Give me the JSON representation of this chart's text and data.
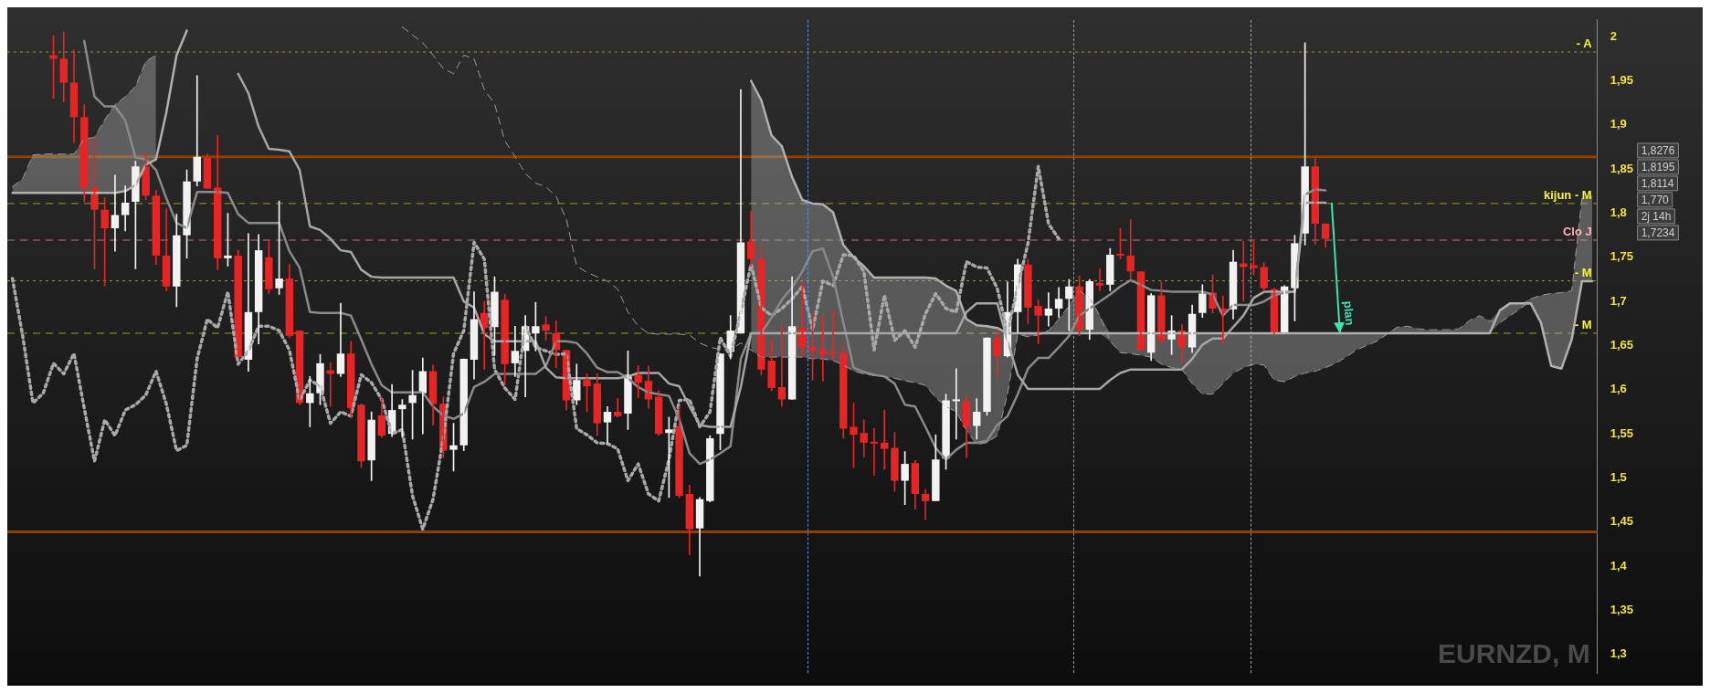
{
  "chart_data": {
    "type": "candlestick",
    "title": "EURNZD, M",
    "categories": [
      null,
      null,
      null,
      null,
      null,
      null,
      null,
      null,
      null,
      null,
      null,
      null,
      null,
      null,
      null,
      null,
      null,
      null,
      null,
      null,
      null,
      null,
      null,
      null,
      null,
      null,
      null,
      null,
      null,
      null,
      null,
      null,
      null,
      null,
      null,
      null,
      null,
      null,
      null,
      null,
      null,
      null,
      null,
      null,
      null,
      null,
      null,
      null,
      null,
      null,
      null,
      null,
      null,
      null,
      null,
      null,
      null,
      null,
      null,
      null,
      null,
      null,
      null,
      null,
      null,
      null,
      null,
      null,
      null,
      null,
      null,
      null,
      null,
      null,
      null,
      null,
      null,
      null,
      null,
      null,
      null,
      null,
      null,
      null,
      null,
      null,
      null,
      null,
      null,
      null,
      null,
      null,
      null,
      null,
      null,
      null,
      null,
      null,
      null,
      null,
      null,
      null,
      null,
      null,
      null,
      null,
      null,
      null,
      null,
      null,
      null,
      null,
      null,
      null,
      null,
      null,
      null,
      null,
      null,
      null,
      null,
      null,
      null,
      null,
      null,
      null,
      null,
      null,
      null,
      null,
      null,
      null,
      null,
      null,
      null,
      null,
      null,
      null,
      null,
      null,
      null,
      null,
      null,
      null,
      null,
      null,
      null,
      null,
      null,
      null,
      null,
      null,
      null,
      null,
      null
    ],
    "ohlc": [
      null,
      null,
      null,
      null,
      [
        1.979,
        2.001,
        1.93,
        1.975
      ],
      [
        1.975,
        2.005,
        1.926,
        1.948
      ],
      [
        1.948,
        1.985,
        1.88,
        1.909
      ],
      [
        1.909,
        1.923,
        1.813,
        1.829
      ],
      [
        1.829,
        1.886,
        1.737,
        1.804
      ],
      [
        1.804,
        1.818,
        1.718,
        1.783
      ],
      [
        1.783,
        1.843,
        1.757,
        1.798
      ],
      [
        1.798,
        1.831,
        1.78,
        1.812
      ],
      [
        1.813,
        1.859,
        1.737,
        1.853
      ],
      [
        1.853,
        1.869,
        1.815,
        1.82
      ],
      [
        1.82,
        1.826,
        1.742,
        1.752
      ],
      [
        1.752,
        1.805,
        1.712,
        1.717
      ],
      [
        1.717,
        1.799,
        1.694,
        1.775
      ],
      [
        1.775,
        1.849,
        1.749,
        1.836
      ],
      [
        1.836,
        1.956,
        1.831,
        1.864
      ],
      [
        1.863,
        1.867,
        1.828,
        1.828
      ],
      [
        1.829,
        1.888,
        1.736,
        1.749
      ],
      [
        1.749,
        1.8,
        1.74,
        1.752
      ],
      [
        1.752,
        1.758,
        1.637,
        1.637
      ],
      [
        1.634,
        1.777,
        1.621,
        1.688
      ],
      [
        1.688,
        1.776,
        1.652,
        1.758
      ],
      [
        1.75,
        1.769,
        1.709,
        1.714
      ],
      [
        1.715,
        1.814,
        1.708,
        1.726
      ],
      [
        1.726,
        1.742,
        1.659,
        1.661
      ],
      [
        1.667,
        1.667,
        1.583,
        1.585
      ],
      [
        1.585,
        1.615,
        1.558,
        1.596
      ],
      [
        1.596,
        1.64,
        1.583,
        1.63
      ],
      [
        1.622,
        1.631,
        1.581,
        1.618
      ],
      [
        1.618,
        1.698,
        1.615,
        1.641
      ],
      [
        1.641,
        1.655,
        1.569,
        1.579
      ],
      [
        1.583,
        1.584,
        1.512,
        1.519
      ],
      [
        1.52,
        1.575,
        1.497,
        1.566
      ],
      [
        1.571,
        1.591,
        1.546,
        1.548
      ],
      [
        1.55,
        1.606,
        1.547,
        1.577
      ],
      [
        1.578,
        1.589,
        1.546,
        1.583
      ],
      [
        1.585,
        1.622,
        1.544,
        1.594
      ],
      [
        1.596,
        1.636,
        1.55,
        1.621
      ],
      [
        1.621,
        1.628,
        1.56,
        1.584
      ],
      [
        1.584,
        1.592,
        1.523,
        1.531
      ],
      [
        1.532,
        1.562,
        1.508,
        1.537
      ],
      [
        1.537,
        1.635,
        1.531,
        1.635
      ],
      [
        1.634,
        1.711,
        1.612,
        1.68
      ],
      [
        1.687,
        1.7,
        1.623,
        1.67
      ],
      [
        1.671,
        1.728,
        1.639,
        1.711
      ],
      [
        1.702,
        1.708,
        1.606,
        1.629
      ],
      [
        1.63,
        1.672,
        1.615,
        1.644
      ],
      [
        1.644,
        1.684,
        1.592,
        1.672
      ],
      [
        1.664,
        1.699,
        1.644,
        1.672
      ],
      [
        1.674,
        1.683,
        1.656,
        1.667
      ],
      [
        1.664,
        1.678,
        1.625,
        1.645
      ],
      [
        1.645,
        1.645,
        1.577,
        1.588
      ],
      [
        1.588,
        1.629,
        1.583,
        1.611
      ],
      [
        1.611,
        1.618,
        1.575,
        1.604
      ],
      [
        1.607,
        1.618,
        1.548,
        1.562
      ],
      [
        1.563,
        1.581,
        1.54,
        1.575
      ],
      [
        1.575,
        1.59,
        1.569,
        1.57
      ],
      [
        1.573,
        1.644,
        1.555,
        1.617
      ],
      [
        1.617,
        1.627,
        1.591,
        1.608
      ],
      [
        1.61,
        1.627,
        1.579,
        1.589
      ],
      [
        1.592,
        1.599,
        1.548,
        1.55
      ],
      [
        1.551,
        1.569,
        1.478,
        1.555
      ],
      [
        1.559,
        1.581,
        1.478,
        1.48
      ],
      [
        1.482,
        1.492,
        1.413,
        1.442
      ],
      [
        1.443,
        1.478,
        1.389,
        1.476
      ],
      [
        1.474,
        1.548,
        1.473,
        1.545
      ],
      [
        1.55,
        1.641,
        1.532,
        1.641
      ],
      [
        1.643,
        1.684,
        1.635,
        1.667
      ],
      [
        1.664,
        1.94,
        1.664,
        1.767
      ],
      [
        1.768,
        1.802,
        1.74,
        1.748
      ],
      [
        1.748,
        1.764,
        1.617,
        1.623
      ],
      [
        1.633,
        1.657,
        1.599,
        1.602
      ],
      [
        1.603,
        1.674,
        1.581,
        1.589
      ],
      [
        1.589,
        1.728,
        1.589,
        1.672
      ],
      [
        1.67,
        1.722,
        1.637,
        1.648
      ],
      [
        1.649,
        1.688,
        1.611,
        1.644
      ],
      [
        1.645,
        1.684,
        1.61,
        1.64
      ],
      [
        1.643,
        1.69,
        1.633,
        1.641
      ],
      [
        1.642,
        1.651,
        1.545,
        1.556
      ],
      [
        1.558,
        1.585,
        1.512,
        1.549
      ],
      [
        1.551,
        1.566,
        1.524,
        1.54
      ],
      [
        1.541,
        1.556,
        1.503,
        1.539
      ],
      [
        1.54,
        1.577,
        1.51,
        1.533
      ],
      [
        1.534,
        1.552,
        1.485,
        1.497
      ],
      [
        1.497,
        1.53,
        1.47,
        1.516
      ],
      [
        1.517,
        1.52,
        1.465,
        1.482
      ],
      [
        1.482,
        1.487,
        1.453,
        1.474
      ],
      [
        1.474,
        1.549,
        1.474,
        1.521
      ],
      [
        1.522,
        1.595,
        1.51,
        1.588
      ],
      [
        1.587,
        1.624,
        1.544,
        1.589
      ],
      [
        1.587,
        1.593,
        1.523,
        1.558
      ],
      [
        1.559,
        1.59,
        1.544,
        1.575
      ],
      [
        1.575,
        1.659,
        1.571,
        1.659
      ],
      [
        1.659,
        1.668,
        1.613,
        1.638
      ],
      [
        1.638,
        1.722,
        1.637,
        1.688
      ],
      [
        1.688,
        1.748,
        1.665,
        1.742
      ],
      [
        1.742,
        1.748,
        1.675,
        1.693
      ],
      [
        1.695,
        1.702,
        1.652,
        1.684
      ],
      [
        1.684,
        1.71,
        1.672,
        1.692
      ],
      [
        1.692,
        1.716,
        1.682,
        1.703
      ],
      [
        1.703,
        1.725,
        1.667,
        1.717
      ],
      [
        1.717,
        1.729,
        1.661,
        1.668
      ],
      [
        1.668,
        1.725,
        1.657,
        1.723
      ],
      [
        1.721,
        1.737,
        1.712,
        1.718
      ],
      [
        1.719,
        1.76,
        1.712,
        1.753
      ],
      [
        1.754,
        1.783,
        1.748,
        1.752
      ],
      [
        1.752,
        1.793,
        1.726,
        1.734
      ],
      [
        1.734,
        1.734,
        1.645,
        1.645
      ],
      [
        1.642,
        1.709,
        1.633,
        1.707
      ],
      [
        1.707,
        1.722,
        1.652,
        1.656
      ],
      [
        1.657,
        1.684,
        1.64,
        1.667
      ],
      [
        1.667,
        1.674,
        1.63,
        1.648
      ],
      [
        1.648,
        1.696,
        1.642,
        1.686
      ],
      [
        1.687,
        1.719,
        1.682,
        1.709
      ],
      [
        1.71,
        1.73,
        1.687,
        1.692
      ],
      [
        1.692,
        1.706,
        1.652,
        1.688
      ],
      [
        1.691,
        1.758,
        1.68,
        1.745
      ],
      [
        1.743,
        1.768,
        1.7,
        1.739
      ],
      [
        1.741,
        1.768,
        1.73,
        1.738
      ],
      [
        1.739,
        1.744,
        1.712,
        1.715
      ],
      [
        1.714,
        1.715,
        1.663,
        1.665
      ],
      [
        1.665,
        1.718,
        1.665,
        1.717
      ],
      [
        1.715,
        1.775,
        1.678,
        1.766
      ],
      [
        1.777,
        1.993,
        1.764,
        1.853
      ],
      [
        1.853,
        1.862,
        1.765,
        1.788
      ],
      [
        1.788,
        1.788,
        1.761,
        1.771
      ],
      null,
      null,
      null,
      null,
      null,
      null,
      null,
      null,
      null,
      null,
      null,
      null,
      null,
      null,
      null,
      null,
      null,
      null,
      null,
      null,
      null,
      null,
      null,
      null,
      null,
      null
    ],
    "series": [
      {
        "type": "line",
        "line_style": "dashed",
        "color": "#9a9a9a",
        "values": [
          1.83,
          1.839,
          1.866,
          1.867,
          1.867,
          1.867,
          1.867,
          1.884,
          1.886,
          1.906,
          1.923,
          1.932,
          1.944,
          1.972,
          1.979,
          null,
          null,
          null,
          null,
          null,
          null,
          null,
          null,
          null,
          null,
          null,
          null,
          null,
          null,
          null,
          null,
          null,
          null,
          null,
          null,
          null,
          null,
          null,
          2.011,
          2.002,
          1.993,
          1.979,
          1.964,
          1.958,
          1.979,
          1.975,
          1.94,
          1.924,
          1.882,
          1.864,
          1.845,
          1.834,
          1.83,
          1.819,
          1.793,
          1.74,
          1.733,
          1.728,
          1.723,
          1.714,
          1.688,
          1.672,
          1.664,
          1.663,
          1.663,
          1.663,
          1.662,
          1.653,
          1.648,
          1.646,
          1.645,
          1.653,
          1.645,
          1.637,
          1.637,
          1.637,
          1.637,
          1.637,
          1.635,
          1.635,
          1.633,
          1.628,
          1.621,
          1.618,
          1.616,
          1.615,
          1.613,
          1.61,
          1.608,
          1.605,
          1.591,
          1.581,
          1.575,
          1.554,
          1.538,
          1.54,
          1.548,
          1.595,
          1.663,
          1.66,
          1.662,
          1.667,
          1.68,
          1.695,
          1.712,
          1.704,
          1.684,
          1.655,
          1.642,
          1.641,
          1.639,
          1.637,
          1.629,
          1.625,
          1.623,
          1.607,
          1.595,
          1.595,
          1.607,
          1.619,
          1.625,
          1.629,
          1.628,
          1.611,
          1.609,
          1.615,
          1.619,
          1.621,
          1.625,
          1.63,
          1.637,
          1.645,
          1.65,
          1.655,
          1.663,
          1.671,
          1.672,
          1.669,
          1.668,
          1.668,
          1.668,
          1.669,
          1.678,
          1.684,
          1.678,
          1.676,
          1.684,
          1.692,
          1.703,
          1.707,
          1.709,
          1.71,
          1.712,
          1.817,
          1.819
        ]
      },
      {
        "type": "line",
        "line_style": "solid",
        "color": "#b0b0b0",
        "lower": [
          1.823,
          1.823,
          1.823,
          1.823,
          1.823,
          1.823,
          1.823,
          1.823,
          1.823,
          1.823,
          1.823,
          1.825,
          1.832,
          1.855,
          1.861,
          null,
          null,
          null,
          null,
          null,
          null,
          null,
          null,
          null,
          null,
          null,
          null,
          null,
          null,
          null,
          null,
          null,
          null,
          null,
          null,
          null,
          null,
          null,
          null,
          null,
          null,
          null,
          null,
          null,
          null,
          null,
          null,
          null,
          null,
          null,
          null,
          null,
          null,
          null,
          null,
          null,
          null,
          null,
          null,
          null,
          null,
          null,
          null,
          null,
          null,
          null,
          null,
          null,
          null,
          null,
          null,
          null,
          1.645,
          1.637,
          1.637,
          1.637,
          1.637,
          1.637,
          1.635,
          1.635,
          1.633,
          1.628,
          1.621,
          1.618,
          1.616,
          1.615,
          1.613,
          1.61,
          1.608,
          1.605,
          1.591,
          1.581,
          1.575,
          1.554,
          1.538,
          1.54,
          1.548,
          1.595,
          1.663,
          1.66,
          1.662,
          1.664,
          1.664,
          1.664,
          1.664,
          1.664,
          1.664,
          1.655,
          1.642,
          1.641,
          1.639,
          1.637,
          1.629,
          1.625,
          1.623,
          1.607,
          1.595,
          1.595,
          1.607,
          1.619,
          1.625,
          1.629,
          1.628,
          1.611,
          1.609,
          1.615,
          1.619,
          1.621,
          1.625,
          1.63,
          1.637,
          1.645,
          1.65,
          1.655,
          1.663,
          1.664,
          1.664,
          1.664,
          1.664,
          1.664,
          1.664,
          1.664,
          1.664,
          1.664,
          1.664,
          1.676,
          1.684,
          1.692,
          1.698,
          1.676,
          1.627,
          1.624,
          1.657,
          1.723,
          1.723
        ],
        "upper": [
          1.83,
          1.839,
          1.866,
          1.867,
          1.867,
          1.867,
          1.867,
          1.884,
          1.886,
          1.906,
          1.923,
          1.932,
          1.944,
          1.972,
          1.979,
          null,
          null,
          null,
          null,
          null,
          null,
          null,
          null,
          null,
          null,
          null,
          null,
          null,
          null,
          null,
          null,
          null,
          null,
          null,
          null,
          null,
          null,
          null,
          null,
          null,
          null,
          null,
          null,
          null,
          null,
          null,
          null,
          null,
          null,
          null,
          null,
          null,
          null,
          null,
          null,
          null,
          null,
          null,
          null,
          null,
          null,
          null,
          null,
          null,
          null,
          null,
          null,
          null,
          null,
          null,
          null,
          null,
          1.95,
          1.928,
          1.888,
          1.876,
          1.841,
          1.815,
          1.811,
          1.81,
          1.801,
          1.764,
          1.75,
          1.74,
          1.727,
          1.727,
          1.727,
          1.727,
          1.727,
          1.727,
          1.726,
          1.718,
          1.712,
          1.68,
          1.673,
          1.672,
          1.67,
          1.664,
          1.664,
          1.664,
          1.664,
          1.667,
          1.68,
          1.695,
          1.712,
          1.704,
          1.684,
          1.664,
          1.664,
          1.664,
          1.664,
          1.664,
          1.664,
          1.664,
          1.664,
          1.664,
          1.664,
          1.664,
          1.664,
          1.664,
          1.664,
          1.664,
          1.664,
          1.664,
          1.664,
          1.664,
          1.664,
          1.664,
          1.664,
          1.664,
          1.664,
          1.664,
          1.664,
          1.664,
          1.664,
          1.671,
          1.672,
          1.669,
          1.668,
          1.668,
          1.668,
          1.669,
          1.678,
          1.684,
          1.678,
          1.69,
          1.698,
          1.698,
          1.703,
          1.707,
          1.709,
          1.71,
          1.712,
          1.817,
          1.819
        ],
        "values": [
          1.823,
          1.823,
          1.823,
          1.823,
          1.823,
          1.823,
          1.823,
          1.823,
          1.823,
          1.823,
          1.823,
          1.825,
          1.832,
          1.855,
          1.861,
          1.914,
          1.979,
          2.007,
          null,
          null,
          null,
          null,
          null,
          null,
          null,
          null,
          null,
          null,
          null,
          null,
          null,
          null,
          null,
          null,
          null,
          null,
          null,
          null,
          null,
          null,
          null,
          null,
          null,
          null,
          null,
          null,
          null,
          null,
          null,
          null,
          null,
          null,
          null,
          null,
          null,
          null,
          null,
          null,
          null,
          null,
          null,
          null,
          null,
          null,
          null,
          null,
          null,
          null,
          null,
          null,
          null,
          null,
          1.95,
          1.928,
          1.888,
          1.876,
          1.841,
          1.815,
          1.811,
          1.81,
          1.801,
          1.764,
          1.75,
          1.74,
          1.727,
          1.727,
          1.727,
          1.727,
          1.727,
          1.727,
          1.726,
          1.718,
          1.712,
          1.68,
          1.673,
          1.672,
          1.67,
          1.664,
          1.664,
          1.664,
          1.664,
          1.664,
          1.664,
          1.664,
          1.664,
          1.664,
          1.664,
          1.664,
          1.664,
          1.664,
          1.664,
          1.664,
          1.664,
          1.664,
          1.664,
          1.664,
          1.664,
          1.664,
          1.664,
          1.664,
          1.664,
          1.664,
          1.664,
          1.664,
          1.664,
          1.664,
          1.664,
          1.664,
          1.664,
          1.664,
          1.664,
          1.664,
          1.664,
          1.664,
          1.664,
          1.664,
          1.664,
          1.664,
          1.664,
          1.664,
          1.664,
          1.664,
          1.664,
          1.664,
          1.664,
          1.69,
          1.698,
          1.698,
          1.698,
          1.676,
          1.627,
          1.624,
          1.657,
          1.723,
          1.723
        ]
      },
      {
        "type": "line",
        "line_style": "solid",
        "color": "#a6a6a6",
        "values": [
          null,
          null,
          null,
          null,
          null,
          null,
          null,
          null,
          null,
          null,
          null,
          null,
          null,
          null,
          null,
          null,
          null,
          null,
          null,
          null,
          null,
          null,
          1.958,
          1.936,
          1.898,
          1.873,
          1.872,
          1.87,
          1.849,
          1.785,
          1.781,
          1.771,
          1.758,
          1.756,
          1.736,
          1.728,
          1.727,
          1.727,
          1.727,
          1.727,
          1.727,
          1.727,
          1.727,
          1.727,
          1.7,
          1.693,
          1.663,
          1.655,
          1.655,
          1.655,
          1.655,
          1.655,
          1.625,
          1.614,
          1.613,
          1.613,
          1.613,
          1.613,
          1.613,
          1.613,
          1.615,
          1.619,
          1.619,
          1.619,
          1.607,
          1.604,
          1.581,
          1.56,
          1.558,
          1.558,
          1.558,
          1.603,
          1.664,
          1.664,
          1.664,
          1.664,
          1.664,
          1.664,
          1.664,
          1.664,
          1.664,
          1.664,
          1.664,
          1.664,
          1.664,
          1.664,
          1.664,
          1.664,
          1.664,
          1.664,
          1.664,
          1.664,
          1.664,
          1.688,
          1.698,
          1.698,
          1.698,
          1.655,
          1.617,
          1.601,
          1.601,
          1.601,
          1.601,
          1.601,
          1.601,
          1.601,
          1.601,
          1.611,
          1.619,
          1.623,
          1.623,
          1.623,
          1.623,
          1.623,
          1.623,
          1.635,
          1.651,
          1.658,
          1.658,
          1.671,
          1.684,
          1.704,
          1.711,
          1.711,
          1.711,
          1.711,
          1.812,
          1.812,
          1.812,
          null,
          null,
          null,
          null,
          null,
          null,
          null,
          null,
          null,
          null,
          null,
          null,
          null,
          null,
          null,
          null,
          null,
          null,
          null,
          null,
          null,
          null,
          null,
          null,
          null,
          null
        ]
      },
      {
        "type": "line",
        "line_style": "solid",
        "color": "#8a8a8a",
        "values": [
          null,
          null,
          null,
          null,
          null,
          null,
          null,
          1.995,
          1.932,
          1.921,
          1.921,
          1.905,
          1.863,
          1.861,
          1.849,
          1.817,
          1.789,
          1.783,
          1.824,
          1.824,
          1.824,
          1.823,
          1.799,
          1.789,
          1.789,
          1.789,
          1.789,
          1.757,
          1.738,
          1.688,
          1.687,
          1.687,
          1.687,
          1.684,
          1.657,
          1.629,
          1.605,
          1.597,
          1.597,
          1.597,
          1.597,
          1.581,
          1.571,
          1.567,
          1.573,
          1.603,
          1.609,
          1.618,
          1.618,
          1.618,
          1.618,
          1.618,
          1.627,
          1.655,
          1.655,
          1.653,
          1.641,
          1.625,
          1.62,
          1.62,
          1.613,
          1.603,
          1.597,
          1.595,
          1.593,
          1.567,
          1.528,
          1.516,
          1.521,
          1.528,
          1.536,
          1.635,
          1.664,
          1.664,
          1.682,
          1.702,
          1.716,
          1.734,
          1.757,
          1.76,
          1.728,
          1.676,
          1.625,
          1.62,
          1.617,
          1.615,
          1.607,
          1.583,
          1.581,
          1.558,
          1.534,
          1.521,
          1.532,
          1.54,
          1.54,
          1.542,
          1.56,
          1.57,
          1.595,
          1.624,
          1.636,
          1.636,
          1.648,
          1.661,
          1.684,
          1.692,
          1.7,
          1.708,
          1.717,
          1.724,
          1.719,
          1.713,
          1.712,
          1.711,
          1.711,
          1.711,
          1.711,
          1.708,
          1.684,
          1.696,
          1.696,
          1.696,
          1.7,
          1.707,
          1.71,
          1.711,
          1.821,
          1.827,
          1.826,
          null,
          null,
          null,
          null,
          null,
          null,
          null,
          null,
          null,
          null,
          null,
          null,
          null,
          null,
          null,
          null,
          null,
          null,
          null,
          null,
          null,
          null,
          null,
          null,
          null,
          null
        ]
      },
      {
        "type": "line",
        "line_style": "dotted",
        "color": "#a8a8a8",
        "values": [
          1.726,
          1.661,
          1.585,
          1.596,
          1.63,
          1.618,
          1.641,
          1.579,
          1.519,
          1.566,
          1.548,
          1.577,
          1.583,
          1.594,
          1.621,
          1.584,
          1.531,
          1.537,
          1.635,
          1.68,
          1.67,
          1.711,
          1.629,
          1.644,
          1.672,
          1.672,
          1.667,
          1.645,
          1.588,
          1.611,
          1.604,
          1.562,
          1.575,
          1.57,
          1.617,
          1.608,
          1.589,
          1.55,
          1.555,
          1.48,
          1.442,
          1.476,
          1.545,
          1.641,
          1.667,
          1.767,
          1.748,
          1.623,
          1.602,
          1.589,
          1.672,
          1.648,
          1.644,
          1.64,
          1.641,
          1.556,
          1.549,
          1.54,
          1.539,
          1.533,
          1.497,
          1.516,
          1.482,
          1.474,
          1.521,
          1.588,
          1.589,
          1.558,
          1.575,
          1.659,
          1.638,
          1.688,
          1.742,
          1.693,
          1.684,
          1.692,
          1.703,
          1.717,
          1.668,
          1.723,
          1.718,
          1.753,
          1.752,
          1.734,
          1.645,
          1.707,
          1.656,
          1.667,
          1.648,
          1.686,
          1.709,
          1.692,
          1.688,
          1.745,
          1.739,
          1.738,
          1.715,
          1.665,
          1.717,
          1.766,
          1.853,
          1.788,
          1.771,
          null,
          null,
          null,
          null,
          null,
          null,
          null,
          null,
          null,
          null,
          null,
          null,
          null,
          null,
          null,
          null,
          null,
          null,
          null,
          null,
          null,
          null,
          null,
          null,
          null,
          null,
          null,
          null,
          null,
          null,
          null,
          null,
          null,
          null,
          null,
          null,
          null,
          null,
          null,
          null,
          null,
          null,
          null,
          null,
          null,
          null,
          null,
          null,
          null,
          null,
          null,
          null
        ]
      }
    ],
    "ylim": [
      1.279,
      2.019
    ],
    "yticks": [
      {
        "value": 1.3,
        "label": "1,3"
      },
      {
        "value": 1.35,
        "label": "1,35"
      },
      {
        "value": 1.4,
        "label": "1,4"
      },
      {
        "value": 1.45,
        "label": "1,45"
      },
      {
        "value": 1.5,
        "label": "1,5"
      },
      {
        "value": 1.55,
        "label": "1,55"
      },
      {
        "value": 1.6,
        "label": "1,6"
      },
      {
        "value": 1.65,
        "label": "1,65"
      },
      {
        "value": 1.7,
        "label": "1,7"
      },
      {
        "value": 1.75,
        "label": "1,75"
      },
      {
        "value": 1.8,
        "label": "1,8"
      },
      {
        "value": 1.85,
        "label": "1,85"
      },
      {
        "value": 1.9,
        "label": "1,9"
      },
      {
        "value": 1.95,
        "label": "1,95"
      },
      2
    ],
    "tick_labels": "y",
    "legend": false,
    "ref_lines": [
      {
        "axis": "y",
        "value": 1.9826,
        "label": "- A",
        "color": "#9a9a20",
        "line_style": "dotted"
      },
      {
        "axis": "y",
        "value": 1.811,
        "label": "kijun - M",
        "color": "#9a9a20",
        "line_style": "dashed"
      },
      {
        "axis": "y",
        "value": 1.7695,
        "label": "Clo J",
        "color": "#c07070",
        "line_style": "dashed"
      },
      {
        "axis": "y",
        "value": 1.7234,
        "label": "- M",
        "color": "#9a9a20",
        "line_style": "dotted"
      },
      {
        "axis": "y",
        "value": 1.664,
        "label": "- M",
        "color": "#9a9a20",
        "line_style": "dashed"
      },
      {
        "axis": "y",
        "value": 1.864,
        "color": "#8b4000",
        "line_style": "solid"
      },
      {
        "axis": "y",
        "value": 1.439,
        "color": "#8b4000",
        "line_style": "solid"
      }
    ],
    "annotations": [
      "1,8276",
      "1,8195",
      "1,8114",
      "1,770",
      "2j 14h",
      "1,7234",
      {
        "text": "plan",
        "y": 1.664
      }
    ]
  }
}
